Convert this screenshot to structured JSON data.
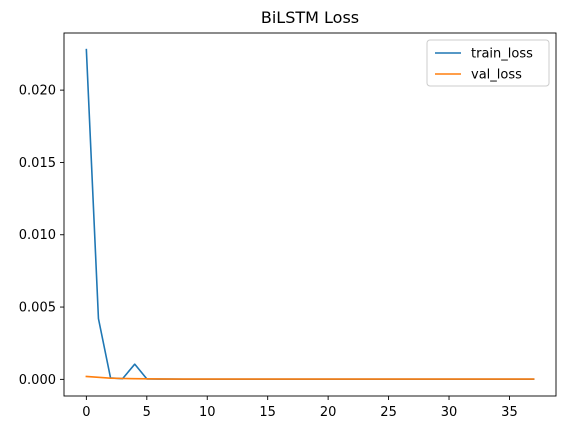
{
  "chart_data": {
    "type": "line",
    "title": "BiLSTM Loss",
    "xlabel": "",
    "ylabel": "",
    "xlim": [
      -1.85,
      38.85
    ],
    "ylim": [
      -0.00115,
      0.02395
    ],
    "xticks": [
      0,
      5,
      10,
      15,
      20,
      25,
      30,
      35
    ],
    "xtick_labels": [
      "0",
      "5",
      "10",
      "15",
      "20",
      "25",
      "30",
      "35"
    ],
    "yticks": [
      0,
      0.005,
      0.01,
      0.015,
      0.02
    ],
    "ytick_labels": [
      "0.000",
      "0.005",
      "0.010",
      "0.015",
      "0.020"
    ],
    "grid": false,
    "legend_position": "top-right",
    "x": [
      0,
      1,
      2,
      3,
      4,
      5,
      6,
      7,
      8,
      9,
      10,
      11,
      12,
      13,
      14,
      15,
      16,
      17,
      18,
      19,
      20,
      21,
      22,
      23,
      24,
      25,
      26,
      27,
      28,
      29,
      30,
      31,
      32,
      33,
      34,
      35,
      36,
      37
    ],
    "series": [
      {
        "name": "train_loss",
        "color": "#1f77b4",
        "values": [
          0.0228,
          0.0042,
          0.0001,
          5e-05,
          0.00105,
          3e-05,
          2e-05,
          2e-05,
          1e-05,
          1e-05,
          1e-05,
          1e-05,
          1e-05,
          1e-05,
          1e-05,
          1e-05,
          1e-05,
          1e-05,
          1e-05,
          1e-05,
          1e-05,
          1e-05,
          1e-05,
          1e-05,
          1e-05,
          1e-05,
          1e-05,
          1e-05,
          1e-05,
          1e-05,
          1e-05,
          1e-05,
          1e-05,
          1e-05,
          1e-05,
          1e-05,
          1e-05,
          1e-05
        ]
      },
      {
        "name": "val_loss",
        "color": "#ff7f0e",
        "values": [
          0.0002,
          0.00014,
          8e-05,
          6e-05,
          5e-05,
          4e-05,
          3e-05,
          2e-05,
          2e-05,
          2e-05,
          2e-05,
          2e-05,
          2e-05,
          2e-05,
          2e-05,
          2e-05,
          2e-05,
          2e-05,
          2e-05,
          2e-05,
          2e-05,
          2e-05,
          2e-05,
          2e-05,
          2e-05,
          2e-05,
          2e-05,
          2e-05,
          2e-05,
          2e-05,
          2e-05,
          2e-05,
          2e-05,
          2e-05,
          2e-05,
          2e-05,
          2e-05,
          2e-05
        ]
      }
    ]
  }
}
